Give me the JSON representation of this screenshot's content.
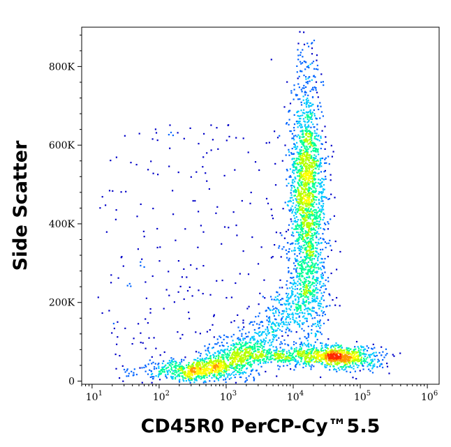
{
  "chart_data": {
    "type": "scatter",
    "title": "",
    "xlabel": "CD45R0 PerCP-Cy™5.5",
    "ylabel": "Side Scatter",
    "x_scale": "log",
    "xlim": [
      7,
      1500000
    ],
    "ylim": [
      -8000,
      900000
    ],
    "x_ticks": [
      {
        "base": "10",
        "exp": "1",
        "value": 10
      },
      {
        "base": "10",
        "exp": "2",
        "value": 100
      },
      {
        "base": "10",
        "exp": "3",
        "value": 1000
      },
      {
        "base": "10",
        "exp": "4",
        "value": 10000
      },
      {
        "base": "10",
        "exp": "5",
        "value": 100000
      },
      {
        "base": "10",
        "exp": "6",
        "value": 1000000
      }
    ],
    "y_ticks": [
      {
        "label": "0",
        "value": 0
      },
      {
        "label": "200K",
        "value": 200000
      },
      {
        "label": "400K",
        "value": 400000
      },
      {
        "label": "600K",
        "value": 600000
      },
      {
        "label": "800K",
        "value": 800000
      }
    ],
    "grid": false,
    "legend": "none",
    "density_colormap": [
      "#0000c8",
      "#0064ff",
      "#00c8ff",
      "#00ff96",
      "#b4ff00",
      "#ffff00",
      "#ff9600",
      "#ff2800"
    ],
    "populations": [
      {
        "x": 300,
        "y": 25000,
        "share": 0.12
      },
      {
        "x": 1500,
        "y": 60000,
        "share": 0.07
      },
      {
        "x": 16000,
        "y": 510000,
        "share": 0.26
      },
      {
        "x": 17000,
        "y": 230000,
        "share": 0.09
      },
      {
        "x": 30000,
        "y": 65000,
        "share": 0.09
      },
      {
        "x": 80000,
        "y": 55000,
        "share": 0.05
      }
    ]
  }
}
